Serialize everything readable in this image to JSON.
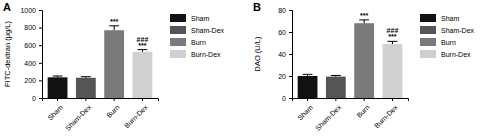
{
  "chart_data": [
    {
      "type": "bar",
      "title": "A",
      "y_label": "FITC-dextran (μg/L)",
      "categories": [
        "Sham",
        "Sham-Dex",
        "Burn",
        "Burn-Dex"
      ],
      "values": [
        235,
        230,
        770,
        525
      ],
      "errors": [
        15,
        12,
        50,
        25
      ],
      "colors": [
        "#111111",
        "#555555",
        "#7a7a7a",
        "#d0d0d0"
      ],
      "significance": [
        null,
        null,
        [
          "***"
        ],
        [
          "###",
          "***"
        ]
      ],
      "ylim": [
        0,
        1000
      ],
      "yticks": [
        0,
        200,
        400,
        600,
        800,
        1000
      ],
      "legend": "right",
      "grid": false
    },
    {
      "type": "bar",
      "title": "B",
      "y_label": "DAO (U/L)",
      "categories": [
        "Sham",
        "Sham-Dex",
        "Burn",
        "Burn-Dex"
      ],
      "values": [
        20,
        19.5,
        68,
        49
      ],
      "errors": [
        1.5,
        1,
        3,
        2.5
      ],
      "colors": [
        "#111111",
        "#555555",
        "#7a7a7a",
        "#d0d0d0"
      ],
      "significance": [
        null,
        null,
        [
          "***"
        ],
        [
          "###",
          "***"
        ]
      ],
      "ylim": [
        0,
        80
      ],
      "yticks": [
        0,
        20,
        40,
        60,
        80
      ],
      "legend": "right",
      "grid": false
    }
  ]
}
